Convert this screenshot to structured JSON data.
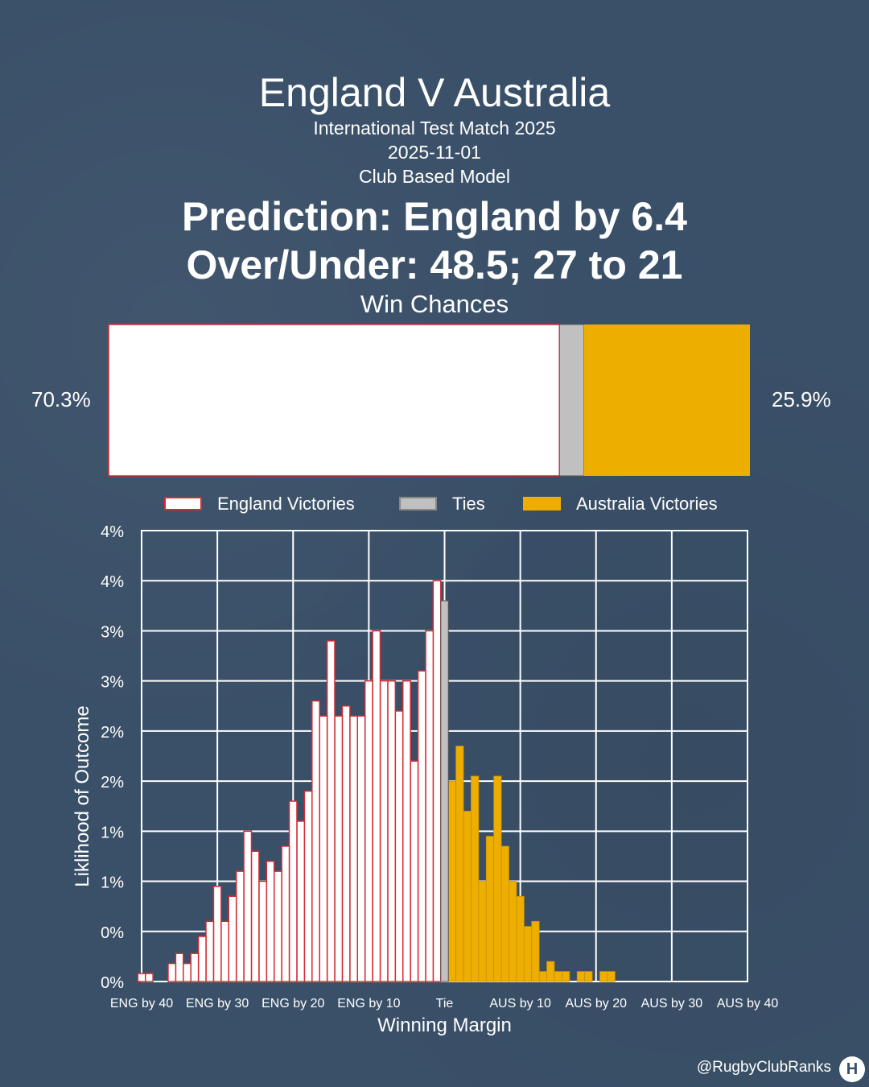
{
  "header": {
    "title": "England V Australia",
    "competition": "International Test Match 2025",
    "date": "2025-11-01",
    "model": "Club Based Model",
    "prediction": "Prediction: England by 6.4",
    "over_under": "Over/Under: 48.5; 27 to 21"
  },
  "win_chances": {
    "title": "Win Chances",
    "england_pct": 70.3,
    "tie_pct": 3.8,
    "australia_pct": 25.9,
    "england_label": "70.3%",
    "australia_label": "25.9%"
  },
  "colors": {
    "england_fill": "#ffffff",
    "england_edge": "#d42a34",
    "tie_fill": "#c0c0c0",
    "australia_fill": "#eeae00",
    "grid": "#ffffff",
    "background": "#3a5068"
  },
  "chart_data": {
    "type": "bar",
    "xlabel": "Winning Margin",
    "ylabel": "Liklihood of Outcome",
    "legend": [
      "England Victories",
      "Ties",
      "Australia Victories"
    ],
    "legend_placement": "top",
    "grid": true,
    "x_ticks": [
      "ENG by 40",
      "ENG by 30",
      "ENG by 20",
      "ENG by 10",
      "Tie",
      "AUS by 10",
      "AUS by 20",
      "AUS by 30",
      "AUS by 40"
    ],
    "y_ticks": [
      "0%",
      "0%",
      "1%",
      "1%",
      "2%",
      "2%",
      "3%",
      "3%",
      "4%",
      "4%"
    ],
    "ylim": [
      0,
      4.5
    ],
    "england_margins": [
      1,
      2,
      3,
      4,
      5,
      6,
      7,
      8,
      9,
      10,
      11,
      12,
      13,
      14,
      15,
      16,
      17,
      18,
      19,
      20,
      21,
      22,
      23,
      24,
      25,
      26,
      27,
      28,
      29,
      30,
      31,
      32,
      33,
      34,
      35,
      36,
      37,
      38,
      39,
      40
    ],
    "england_values": [
      4.0,
      3.5,
      3.1,
      2.2,
      3.0,
      2.7,
      3.0,
      3.0,
      3.5,
      3.0,
      2.65,
      2.65,
      2.75,
      2.65,
      3.4,
      2.65,
      2.8,
      1.9,
      1.6,
      1.8,
      1.35,
      1.1,
      1.2,
      1.0,
      1.3,
      1.5,
      1.1,
      0.85,
      0.6,
      0.95,
      0.6,
      0.45,
      0.28,
      0.18,
      0.28,
      0.18,
      0.0,
      0.0,
      0.08,
      0.08
    ],
    "tie_value": 3.8,
    "australia_margins": [
      1,
      2,
      3,
      4,
      5,
      6,
      7,
      8,
      9,
      10,
      11,
      12,
      13,
      14,
      15,
      16,
      17,
      18,
      19,
      20,
      21,
      22,
      23,
      24,
      25,
      26,
      27,
      28,
      29,
      30,
      31,
      32,
      33,
      34
    ],
    "australia_values": [
      2.0,
      2.35,
      1.7,
      2.05,
      1.0,
      1.45,
      2.05,
      1.35,
      1.0,
      0.85,
      0.55,
      0.6,
      0.1,
      0.2,
      0.1,
      0.1,
      0.0,
      0.1,
      0.1,
      0.0,
      0.1,
      0.1,
      0.0,
      0.0,
      0.0,
      0.0,
      0.0,
      0.0,
      0.0,
      0.0,
      0.0,
      0.0,
      0.0,
      0.0
    ]
  },
  "footer": {
    "handle": "@RugbyClubRanks",
    "logo_mark": "H"
  }
}
